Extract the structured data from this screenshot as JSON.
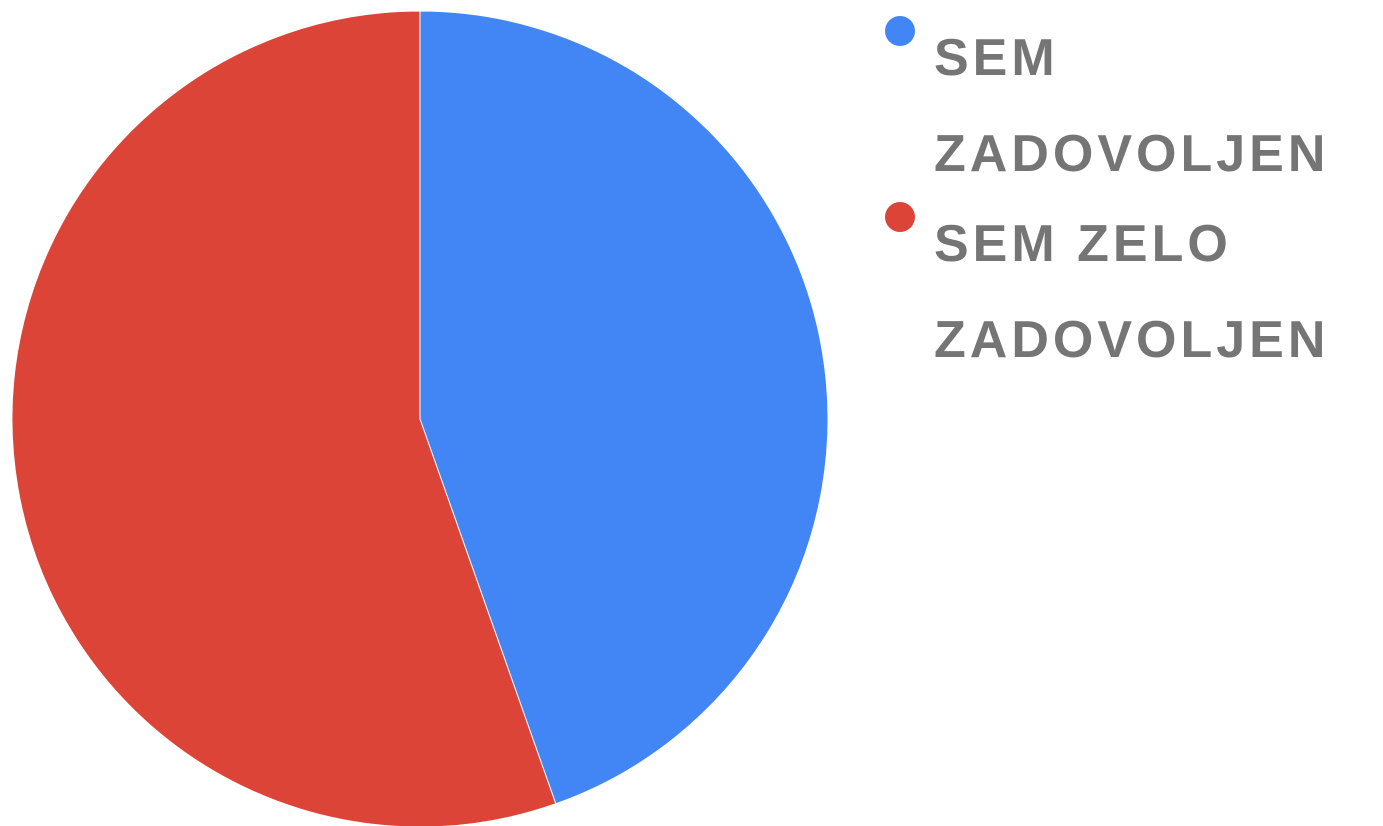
{
  "chart_data": {
    "type": "pie",
    "categories": [
      "SEM ZADOVOLJEN",
      "SEM ZELO ZADOVOLJEN"
    ],
    "values": [
      44.6,
      55.4
    ],
    "colors": [
      "#4285f4",
      "#db4437"
    ],
    "legend": "right"
  }
}
